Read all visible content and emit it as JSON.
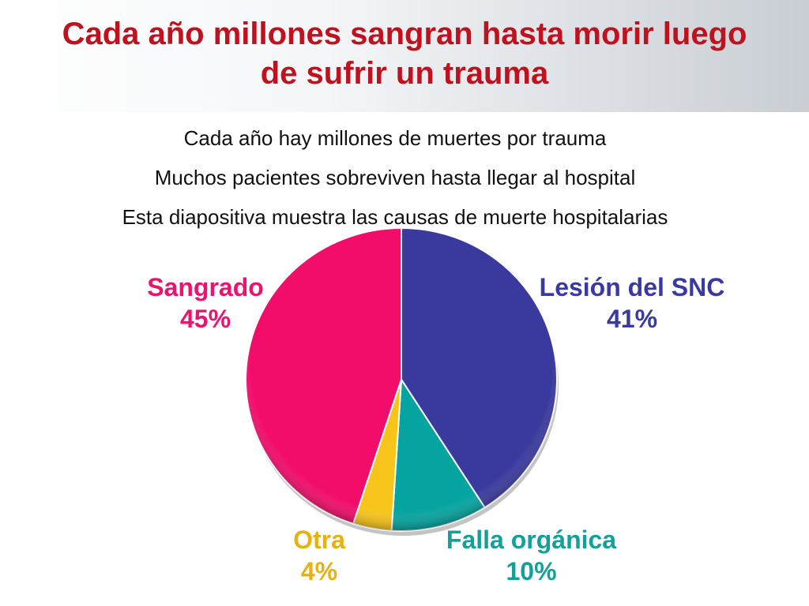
{
  "slide": {
    "title_line1": "Cada año millones sangran hasta morir luego",
    "title_line2": "de sufrir un trauma",
    "bullets": [
      "Cada año hay millones de muertes por trauma",
      "Muchos pacientes sobreviven hasta llegar al hospital",
      "Esta diapositiva muestra las causas de muerte hospitalarias"
    ],
    "title_color": "#c0121e"
  },
  "chart_data": {
    "type": "pie",
    "title": "",
    "unit": "%",
    "slices": [
      {
        "label": "Lesión del SNC",
        "value": 41,
        "value_label": "41%",
        "color": "#3a3a9e",
        "label_color": "#3a3a9e"
      },
      {
        "label": "Falla orgánica",
        "value": 10,
        "value_label": "10%",
        "color": "#06a4a0",
        "label_color": "#14a09a"
      },
      {
        "label": "Otra",
        "value": 4,
        "value_label": "4%",
        "color": "#f7c41a",
        "label_color": "#e8b010"
      },
      {
        "label": "Sangrado",
        "value": 45,
        "value_label": "45%",
        "color": "#f20d6b",
        "label_color": "#e8156f"
      }
    ]
  }
}
